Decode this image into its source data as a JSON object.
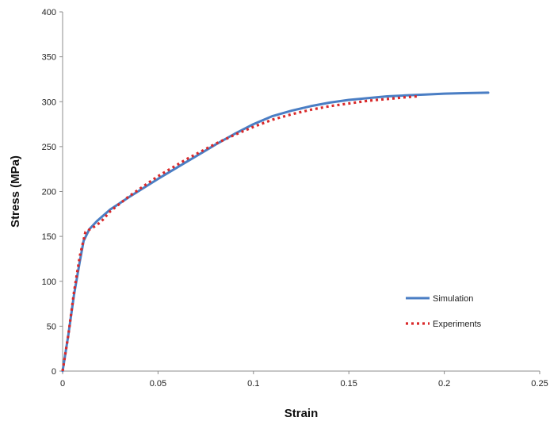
{
  "chart_data": {
    "type": "line",
    "title": "",
    "xlabel": "Strain",
    "ylabel": "Stress (MPa)",
    "xlim": [
      0,
      0.25
    ],
    "ylim": [
      0,
      400
    ],
    "x_ticks": [
      "0",
      "0.05",
      "0.1",
      "0.15",
      "0.2",
      "0.25"
    ],
    "y_ticks": [
      "0",
      "50",
      "100",
      "150",
      "200",
      "250",
      "300",
      "350",
      "400"
    ],
    "grid": false,
    "legend_position": "bottom-right",
    "series": [
      {
        "name": "Simulation",
        "style": "solid",
        "color": "#4a7ec4",
        "points": [
          [
            0,
            0
          ],
          [
            0.003,
            40
          ],
          [
            0.006,
            85
          ],
          [
            0.009,
            122
          ],
          [
            0.011,
            145
          ],
          [
            0.014,
            158
          ],
          [
            0.018,
            167
          ],
          [
            0.025,
            180
          ],
          [
            0.035,
            194
          ],
          [
            0.05,
            214
          ],
          [
            0.065,
            233
          ],
          [
            0.08,
            252
          ],
          [
            0.09,
            264
          ],
          [
            0.1,
            275
          ],
          [
            0.11,
            284
          ],
          [
            0.12,
            290
          ],
          [
            0.13,
            295
          ],
          [
            0.14,
            299
          ],
          [
            0.15,
            302
          ],
          [
            0.16,
            304
          ],
          [
            0.17,
            306
          ],
          [
            0.18,
            307
          ],
          [
            0.19,
            308
          ],
          [
            0.2,
            309
          ],
          [
            0.21,
            309.5
          ],
          [
            0.223,
            310
          ]
        ]
      },
      {
        "name": "Experiments",
        "style": "dotted",
        "color": "#d9292a",
        "points": [
          [
            0,
            0
          ],
          [
            0.003,
            40
          ],
          [
            0.006,
            88
          ],
          [
            0.009,
            128
          ],
          [
            0.012,
            155
          ],
          [
            0.016,
            160
          ],
          [
            0.02,
            166
          ],
          [
            0.025,
            178
          ],
          [
            0.035,
            195
          ],
          [
            0.05,
            217
          ],
          [
            0.065,
            236
          ],
          [
            0.08,
            253
          ],
          [
            0.09,
            263
          ],
          [
            0.1,
            272
          ],
          [
            0.11,
            280
          ],
          [
            0.12,
            286
          ],
          [
            0.13,
            291
          ],
          [
            0.14,
            295
          ],
          [
            0.15,
            298
          ],
          [
            0.16,
            301
          ],
          [
            0.17,
            303
          ],
          [
            0.18,
            305
          ],
          [
            0.186,
            306
          ]
        ]
      }
    ]
  },
  "colors": {
    "axis": "#8c8c8c",
    "simulation": "#4a7ec4",
    "experiments": "#d9292a"
  }
}
